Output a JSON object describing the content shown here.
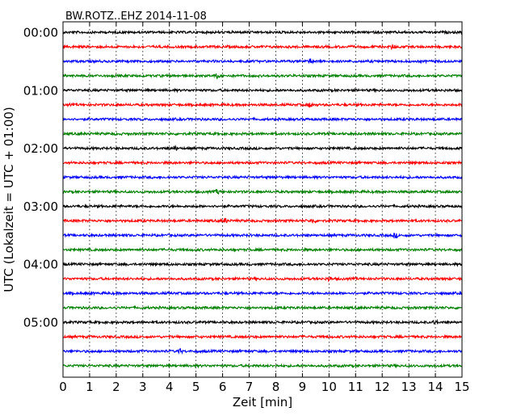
{
  "chart_data": {
    "type": "line",
    "title": "BW.ROTZ..EHZ 2014-11-08",
    "xlabel": "Zeit  [min]",
    "ylabel": "UTC (Lokalzeit = UTC + 01:00)",
    "xlim": [
      0,
      15
    ],
    "x_ticks": [
      "0",
      "1",
      "2",
      "3",
      "4",
      "5",
      "6",
      "7",
      "8",
      "9",
      "10",
      "11",
      "12",
      "13",
      "14",
      "15"
    ],
    "y_ticks": [
      "00:00",
      "01:00",
      "02:00",
      "03:00",
      "04:00",
      "05:00"
    ],
    "grid": "vertical dotted",
    "trace_colors": [
      "#000000",
      "#ff0000",
      "#0000ff",
      "#008000"
    ],
    "trace_count": 24,
    "trace_minutes": 15,
    "first_trace_start": "00:00",
    "events": [
      {
        "trace": 1,
        "minute": 12.4
      },
      {
        "trace": 2,
        "minute": 9.3
      },
      {
        "trace": 3,
        "minute": 5.8
      },
      {
        "trace": 5,
        "minute": 9.3
      },
      {
        "trace": 8,
        "minute": 4.2
      },
      {
        "trace": 11,
        "minute": 5.8
      },
      {
        "trace": 13,
        "minute": 6.1
      },
      {
        "trace": 13,
        "minute": 9.4
      },
      {
        "trace": 14,
        "minute": 12.5
      },
      {
        "trace": 17,
        "minute": 10.0
      },
      {
        "trace": 20,
        "minute": 14.0
      },
      {
        "trace": 22,
        "minute": 4.4
      }
    ]
  }
}
